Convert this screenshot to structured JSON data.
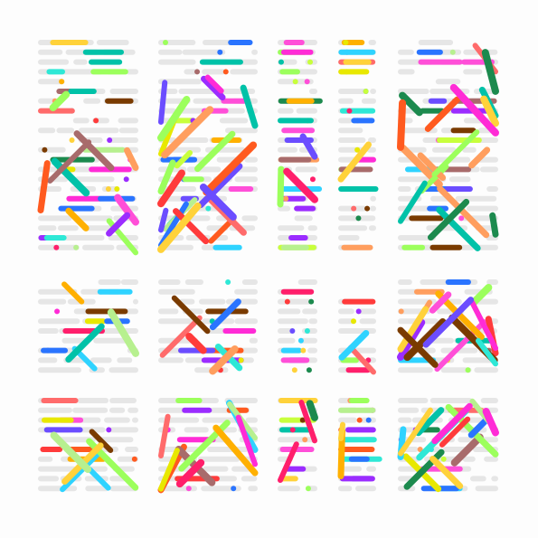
{
  "canvas": {
    "background": "#fdfdfd",
    "track_color": "#e6e6e6"
  },
  "palette": [
    "#ff5a1f",
    "#2ee8d6",
    "#ff2bd6",
    "#c8ff3c",
    "#b7f08f",
    "#ffb000",
    "#2a74ff",
    "#9b2cff",
    "#ff3b3b",
    "#ff6b6b",
    "#e8e800",
    "#1c8a4e",
    "#ff9e5e",
    "#7a3b00",
    "#2fd3ff",
    "#ff1f6b",
    "#9cff5c",
    "#6b4dff",
    "#ff4fd8",
    "#00c2a8",
    "#ffd23a",
    "#a86b6b"
  ]
}
